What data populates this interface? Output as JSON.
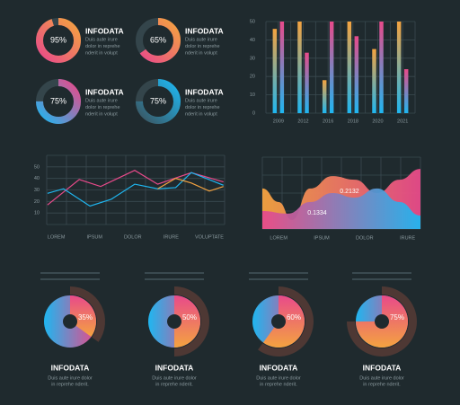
{
  "chart_data": [
    {
      "type": "ring",
      "title": "INFODATA",
      "text": [
        "Duis aute irure",
        "dolor in reprehe",
        "nderit in volupt"
      ],
      "values": [
        95
      ],
      "value_labels": [
        "95%"
      ],
      "colors": [
        "#e84a8a",
        "#f4a340"
      ]
    },
    {
      "type": "ring",
      "title": "INFODATA",
      "text": [
        "Duis aute irure",
        "dolor in reprehe",
        "nderit in volupt"
      ],
      "values": [
        65
      ],
      "value_labels": [
        "65%"
      ],
      "colors": [
        "#e84a8a",
        "#f4a340"
      ]
    },
    {
      "type": "ring",
      "title": "INFODATA",
      "text": [
        "Duis aute irure",
        "dolor in reprehe",
        "nderit in volupt"
      ],
      "values": [
        75
      ],
      "value_labels": [
        "75%"
      ],
      "colors": [
        "#1fb6f0",
        "#e84a8a"
      ]
    },
    {
      "type": "ring",
      "title": "INFODATA",
      "text": [
        "Duis aute irure",
        "dolor in reprehe",
        "nderit in volupt"
      ],
      "values": [
        75
      ],
      "value_labels": [
        "75%"
      ],
      "colors": [
        "#3a5560",
        "#1fb6f0"
      ]
    },
    {
      "type": "bar",
      "categories": [
        "2009",
        "2012",
        "2016",
        "2018",
        "2020",
        "2021"
      ],
      "series": [
        {
          "color": "#f4a340",
          "values": [
            46,
            50,
            18,
            50,
            35,
            50
          ]
        },
        {
          "color": "#e84a8a",
          "values": [
            50,
            33,
            50,
            42,
            50,
            24
          ]
        }
      ],
      "ylim": [
        0,
        50
      ],
      "yticks": [
        0,
        10,
        20,
        30,
        40,
        50
      ],
      "grid": true
    },
    {
      "type": "line",
      "xlim": [
        0.75,
        5.4
      ],
      "xticks": [
        {
          "value": 1,
          "label": "LOREM"
        },
        {
          "value": 2,
          "label": "IPSUM"
        },
        {
          "value": 3,
          "label": "DOLOR"
        },
        {
          "value": 4,
          "label": "IRURE"
        },
        {
          "value": 5,
          "label": "VOLUPTATE"
        }
      ],
      "ylim": [
        0,
        60
      ],
      "yticks": [
        10,
        20,
        30,
        40,
        50
      ],
      "grid": true,
      "series": [
        {
          "color": "#e84a8a",
          "x": [
            0.77,
            1.6,
            2.16,
            3.05,
            3.65,
            4.53,
            5.37
          ],
          "values": [
            17,
            39,
            33,
            47,
            35,
            45,
            37
          ]
        },
        {
          "color": "#1fb6f0",
          "x": [
            0.77,
            1.19,
            1.88,
            2.44,
            3.05,
            3.65,
            4.12,
            4.53,
            5.37
          ],
          "values": [
            27,
            31,
            16,
            22,
            35,
            31,
            32,
            45,
            34
          ]
        },
        {
          "color": "#f4a340",
          "x": [
            3.65,
            4.12,
            4.53,
            5.0,
            5.37
          ],
          "values": [
            31,
            40,
            36,
            29,
            33
          ]
        }
      ]
    },
    {
      "type": "area",
      "xlim": [
        0.62,
        4.3
      ],
      "ylim": [
        0,
        0.3
      ],
      "grid": true,
      "xticks": [
        {
          "value": 1,
          "label": "LOREM"
        },
        {
          "value": 2,
          "label": "IPSUM"
        },
        {
          "value": 3,
          "label": "DOLOR"
        },
        {
          "value": 4,
          "label": "IRURE"
        }
      ],
      "series": [
        {
          "color": "#e84a8a",
          "x": [
            0.62,
            1.0,
            1.31,
            1.73,
            2.25,
            2.77,
            3.29,
            3.81,
            4.3
          ],
          "values": [
            0.169,
            0.1125,
            0.0375,
            0.169,
            0.221,
            0.206,
            0.15,
            0.206,
            0.251
          ]
        },
        {
          "color": "#1fb6f0",
          "x": [
            0.62,
            1.21,
            1.73,
            2.25,
            2.77,
            3.29,
            3.81,
            4.3
          ],
          "values": [
            0.075,
            0.064,
            0.1125,
            0.15,
            0.131,
            0.169,
            0.1125,
            0.056
          ]
        }
      ],
      "annotations": [
        "0.1334",
        "0.2132"
      ]
    },
    {
      "type": "pie",
      "title": "INFODATA",
      "text": [
        "Duis aute irure dolor",
        "in reprehe nderit."
      ],
      "values": [
        35
      ],
      "value_labels": [
        "35%"
      ],
      "colors": [
        "#e84a8a",
        "#f4a340",
        "#1fb6f0"
      ]
    },
    {
      "type": "pie",
      "title": "INFODATA",
      "text": [
        "Duis aute irure dolor",
        "in reprehe nderit."
      ],
      "values": [
        50
      ],
      "value_labels": [
        "50%"
      ],
      "colors": [
        "#e84a8a",
        "#f4a340",
        "#1fb6f0"
      ]
    },
    {
      "type": "pie",
      "title": "INFODATA",
      "text": [
        "Duis aute irure dolor",
        "in reprehe nderit."
      ],
      "values": [
        60
      ],
      "value_labels": [
        "60%"
      ],
      "colors": [
        "#e84a8a",
        "#f4a340",
        "#1fb6f0"
      ]
    },
    {
      "type": "pie",
      "title": "INFODATA",
      "text": [
        "Duis aute irure dolor",
        "in reprehe nderit."
      ],
      "values": [
        75
      ],
      "value_labels": [
        "75%"
      ],
      "colors": [
        "#e84a8a",
        "#f4a340",
        "#1fb6f0"
      ]
    }
  ]
}
